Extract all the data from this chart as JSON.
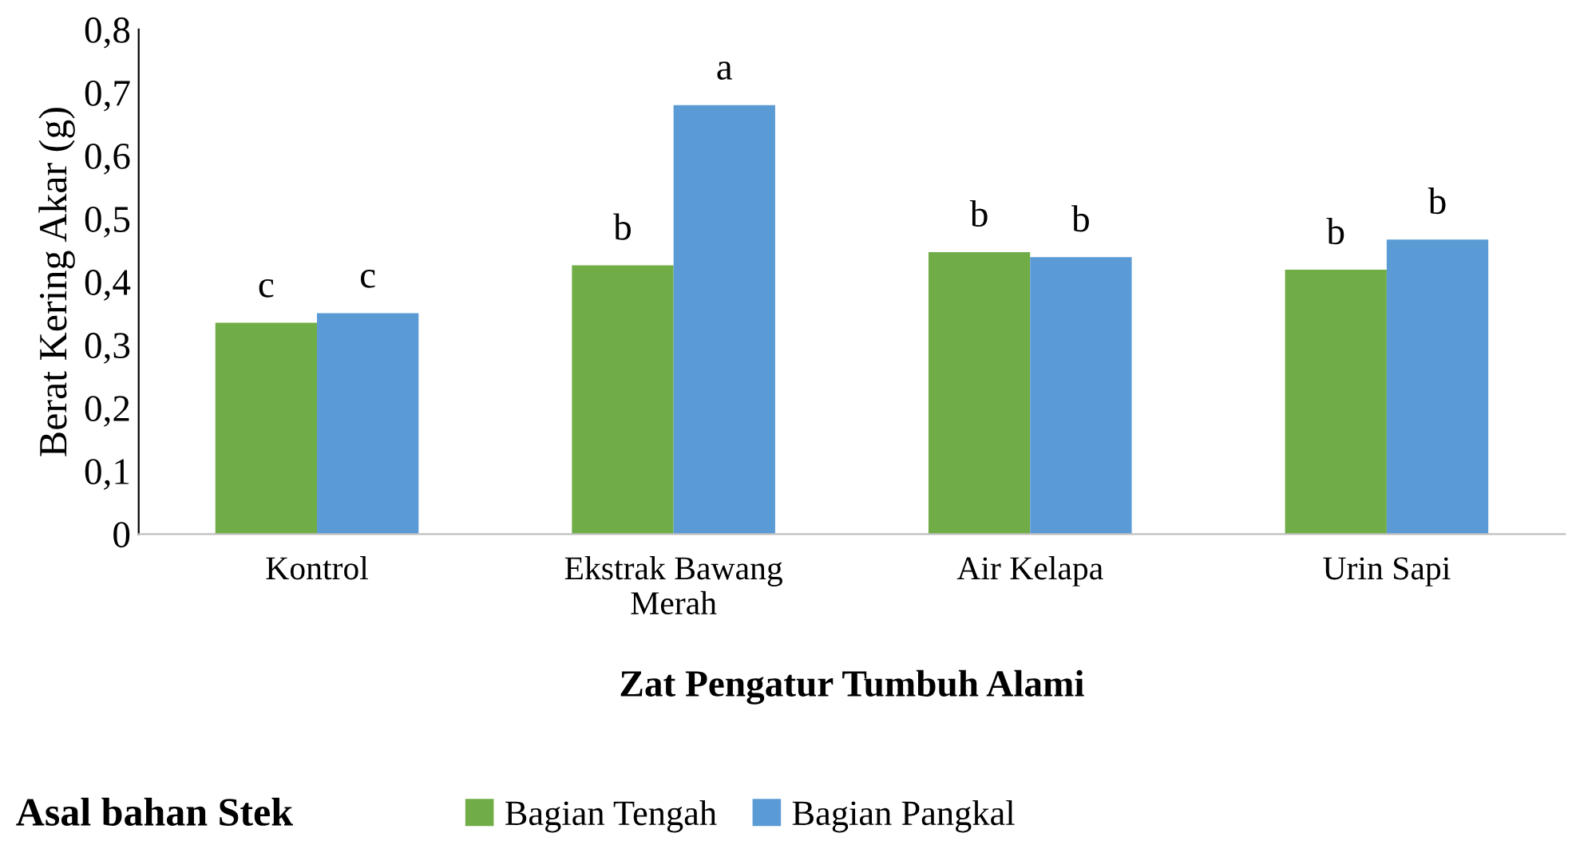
{
  "chart_data": {
    "type": "bar",
    "xlabel": "Zat Pengatur Tumbuh Alami",
    "ylabel": "Berat Kering Akar (g)",
    "legend_title": "Asal bahan Stek",
    "legend": "bottom",
    "categories": [
      "Kontrol",
      "Ekstrak Bawang\nMerah",
      "Air Kelapa",
      "Urin Sapi"
    ],
    "series": [
      {
        "name": "Bagian Tengah",
        "color": "#70ad47",
        "values": [
          0.335,
          0.426,
          0.447,
          0.419
        ]
      },
      {
        "name": "Bagian Pangkal",
        "color": "#5b9bd5",
        "values": [
          0.35,
          0.68,
          0.439,
          0.467
        ]
      }
    ],
    "ylim": [
      0,
      0.8
    ],
    "yticks": [
      0,
      {
        "value": 0.1,
        "label": "0,1"
      },
      {
        "value": 0.2,
        "label": "0,2"
      },
      {
        "value": 0.3,
        "label": "0,3"
      },
      {
        "value": 0.4,
        "label": "0,4"
      },
      {
        "value": 0.5,
        "label": "0,5"
      },
      {
        "value": 0.6,
        "label": "0,6"
      },
      {
        "value": 0.7,
        "label": "0,7"
      },
      {
        "value": 0.8,
        "label": "0,8"
      }
    ],
    "annotations": [
      {
        "text": "c",
        "x": "Kontrol",
        "y": 0.335
      },
      {
        "text": "c",
        "x": "Kontrol",
        "y": 0.35
      },
      {
        "text": "b",
        "x": "Ekstrak Bawang\nMerah",
        "y": 0.426
      },
      {
        "text": "a",
        "x": "Ekstrak Bawang\nMerah",
        "y": 0.68
      },
      {
        "text": "b",
        "x": "Air Kelapa",
        "y": 0.447
      },
      {
        "text": "b",
        "x": "Air Kelapa",
        "y": 0.439
      },
      {
        "text": "b",
        "x": "Urin Sapi",
        "y": 0.419
      },
      {
        "text": "b",
        "x": "Urin Sapi",
        "y": 0.467
      }
    ],
    "grid": false
  }
}
